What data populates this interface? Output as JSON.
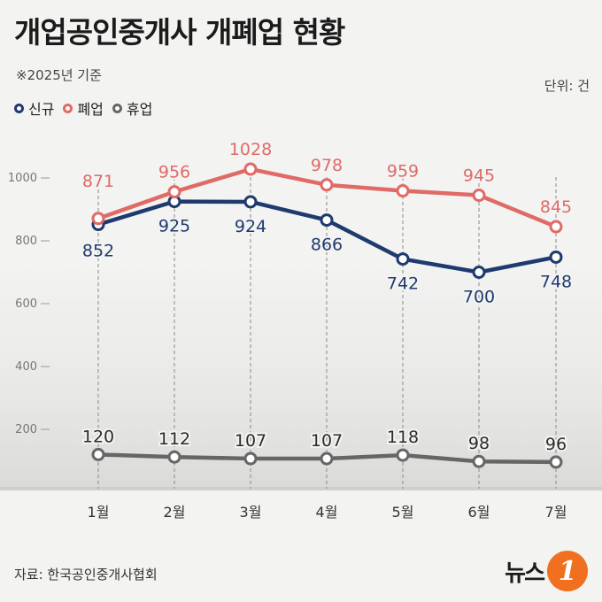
{
  "header": {
    "title": "개업공인중개사 개폐업 현황",
    "subtitle": "※2025년 기준",
    "unit": "단위: 건"
  },
  "legend": [
    {
      "label": "신규",
      "color": "#1f3a6e"
    },
    {
      "label": "폐업",
      "color": "#e06a66"
    },
    {
      "label": "휴업",
      "color": "#666666"
    }
  ],
  "footer": {
    "source": "자료: 한국공인중개사협회",
    "logo_text": "뉴스",
    "logo_badge": "1"
  },
  "chart_data": {
    "type": "line",
    "categories": [
      "1월",
      "2월",
      "3월",
      "4월",
      "5월",
      "6월",
      "7월"
    ],
    "series": [
      {
        "name": "신규",
        "color": "#1f3a6e",
        "values": [
          852,
          925,
          924,
          866,
          742,
          700,
          748
        ]
      },
      {
        "name": "폐업",
        "color": "#e06a66",
        "values": [
          871,
          956,
          1028,
          978,
          959,
          945,
          845
        ]
      },
      {
        "name": "휴업",
        "color": "#666666",
        "values": [
          120,
          112,
          107,
          107,
          118,
          98,
          96
        ]
      }
    ],
    "yticks": [
      200,
      400,
      600,
      800,
      1000
    ],
    "ylim": [
      0,
      1100
    ],
    "grid": "vertical-dashed"
  }
}
